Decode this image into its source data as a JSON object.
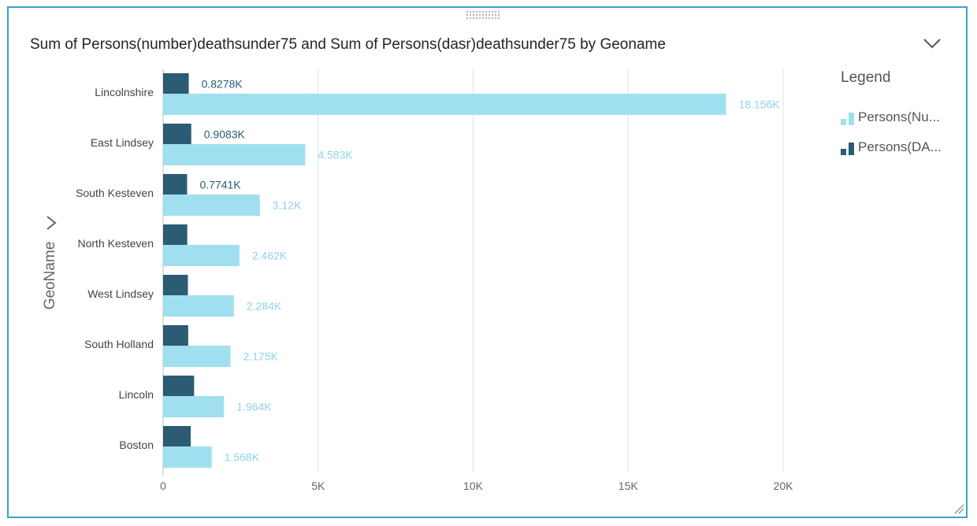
{
  "visual": {
    "title": "Sum of Persons(number)deathsunder75 and Sum of Persons(dasr)deathsunder75 by Geoname",
    "y_axis_title": "GeoName",
    "legend_title": "Legend",
    "legend_items": [
      {
        "label": "Persons(Nu...",
        "color": "#a0dff0"
      },
      {
        "label": "Persons(DA...",
        "color": "#2c5b74"
      }
    ],
    "icons": {
      "drag": "drag-handle-icon",
      "expand": "chevron-down-icon",
      "axis_drill": "chevron-right-icon",
      "resize": "resize-grip-icon"
    }
  },
  "chart_data": {
    "type": "bar",
    "orientation": "horizontal",
    "title": "Sum of Persons(number)deathsunder75 and Sum of Persons(dasr)deathsunder75 by Geoname",
    "ylabel": "GeoName",
    "xlabel": "",
    "categories": [
      "Lincolnshire",
      "East Lindsey",
      "South Kesteven",
      "North Kesteven",
      "West Lindsey",
      "South Holland",
      "Lincoln",
      "Boston"
    ],
    "xlim": [
      0,
      20000
    ],
    "x_ticks": [
      0,
      5000,
      10000,
      15000,
      20000
    ],
    "x_tick_labels": [
      "0",
      "5K",
      "10K",
      "15K",
      "20K"
    ],
    "grid": true,
    "legend_position": "right",
    "series": [
      {
        "name": "Persons(DA...",
        "color": "#2c5b74",
        "values": [
          827.8,
          908.3,
          774.1,
          780,
          800,
          810,
          1000,
          890
        ],
        "labels": [
          "0.8278K",
          "0.9083K",
          "0.7741K",
          "",
          "",
          "",
          "",
          ""
        ]
      },
      {
        "name": "Persons(Nu...",
        "color": "#a0dff0",
        "values": [
          18156,
          4583,
          3120,
          2462,
          2284,
          2175,
          1964,
          1568
        ],
        "labels": [
          "18.156K",
          "4.583K",
          "3.12K",
          "2.462K",
          "2.284K",
          "2.175K",
          "1.964K",
          "1.568K"
        ]
      }
    ]
  }
}
